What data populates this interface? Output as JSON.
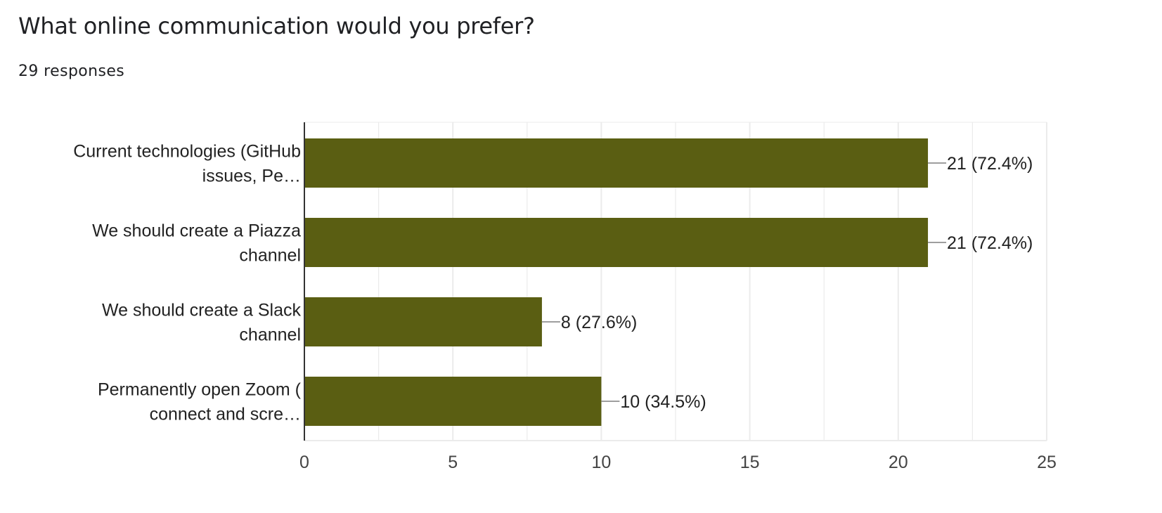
{
  "question": {
    "title": "What online communication would you prefer?",
    "responses": "29 responses"
  },
  "colors": {
    "bar": "#5a5e12",
    "gridline": "#ebebeb",
    "axis": "#333333",
    "leader": "#9e9e9e",
    "text": "#222222",
    "tick_text": "#444444"
  },
  "chart_data": {
    "type": "bar",
    "orientation": "horizontal",
    "categories": [
      [
        "Current technologies (GitHub",
        "issues, Pe…"
      ],
      [
        "We should create a Piazza",
        "channel"
      ],
      [
        "We should create a Slack",
        "channel"
      ],
      [
        "Permanently open Zoom (",
        "connect and scre…"
      ]
    ],
    "values": [
      21,
      21,
      8,
      10
    ],
    "data_labels": [
      "21 (72.4%)",
      "21 (72.4%)",
      "8 (27.6%)",
      "10 (34.5%)"
    ],
    "xlim": [
      0,
      25
    ],
    "xticks": [
      0,
      5,
      10,
      15,
      20,
      25
    ],
    "grid": true,
    "legend": "none"
  }
}
